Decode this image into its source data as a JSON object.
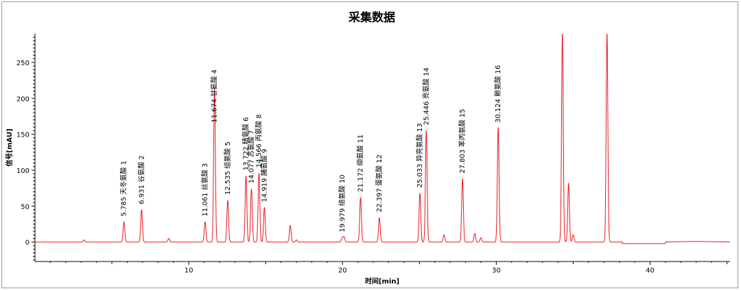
{
  "chart_data": {
    "type": "line",
    "title": "采集数据",
    "xlabel": "时间[min]",
    "ylabel": "信号[mAU]",
    "xlim": [
      0,
      45.2
    ],
    "ylim": [
      -27,
      290
    ],
    "x_ticks": [
      10,
      20,
      30,
      40
    ],
    "y_ticks": [
      0,
      50,
      100,
      150,
      200,
      250
    ],
    "grid": false,
    "line_color": "#e8151b",
    "peaks": [
      {
        "no": "1",
        "rt": "5.785",
        "name": "天冬氨酸",
        "height": 28
      },
      {
        "no": "2",
        "rt": "6.931",
        "name": "谷氨酸",
        "height": 45
      },
      {
        "no": "3",
        "rt": "11.061",
        "name": "丝氨酸",
        "height": 28
      },
      {
        "no": "4",
        "rt": "11.674",
        "name": "甘氨酸",
        "height": 215
      },
      {
        "no": "5",
        "rt": "12.535",
        "name": "组氨酸",
        "height": 58
      },
      {
        "no": "6",
        "rt": "13.722",
        "name": "精氨酸",
        "height": 92
      },
      {
        "no": "7",
        "rt": "14.077",
        "name": "苏氨酸",
        "height": 74
      },
      {
        "no": "8",
        "rt": "14.566",
        "name": "丙氨酸",
        "height": 96
      },
      {
        "no": "9",
        "rt": "14.919",
        "name": "脯氨酸",
        "height": 48
      },
      {
        "no": "10",
        "rt": "19.979",
        "name": "络氨酸",
        "height": 6
      },
      {
        "no": "11",
        "rt": "21.172",
        "name": "缬氨酸",
        "height": 62
      },
      {
        "no": "12",
        "rt": "22.397",
        "name": "蛋氨酸",
        "height": 34
      },
      {
        "no": "13",
        "rt": "25.033",
        "name": "异亮氨酸",
        "height": 68
      },
      {
        "no": "14",
        "rt": "25.446",
        "name": "亮氨酸",
        "height": 155
      },
      {
        "no": "15",
        "rt": "27.803",
        "name": "苯丙氨酸",
        "height": 88
      },
      {
        "no": "16",
        "rt": "30.124",
        "name": "赖氨酸",
        "height": 160
      }
    ],
    "unlabeled_peaks": [
      {
        "x": 3.2,
        "height": 3
      },
      {
        "x": 8.7,
        "height": 5
      },
      {
        "x": 16.6,
        "height": 23
      },
      {
        "x": 17.0,
        "height": 3
      },
      {
        "x": 20.1,
        "height": 7
      },
      {
        "x": 26.6,
        "height": 10
      },
      {
        "x": 28.6,
        "height": 12
      },
      {
        "x": 29.0,
        "height": 6
      },
      {
        "x": 34.3,
        "height": 290
      },
      {
        "x": 34.7,
        "height": 82
      },
      {
        "x": 35.0,
        "height": 10
      },
      {
        "x": 37.2,
        "height": 290
      }
    ]
  }
}
